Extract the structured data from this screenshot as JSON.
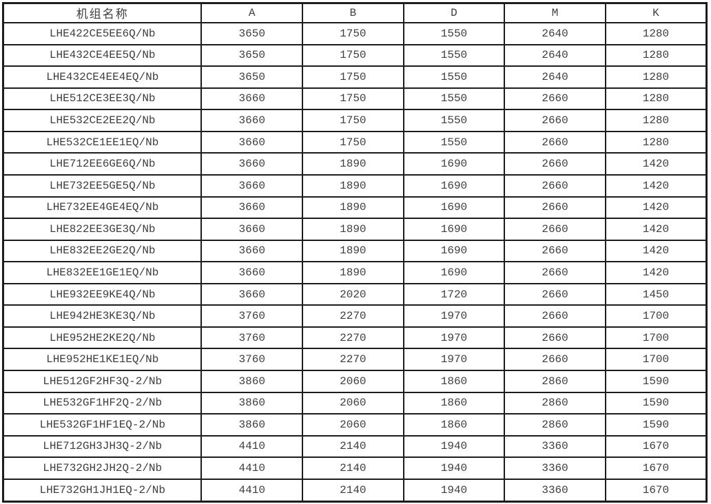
{
  "table": {
    "columns": [
      "机组名称",
      "A",
      "B",
      "D",
      "M",
      "K"
    ],
    "rows": [
      {
        "name": "LHE422CE5EE6Q/Nb",
        "values": [
          "3650",
          "1750",
          "1550",
          "2640",
          "1280"
        ]
      },
      {
        "name": "LHE432CE4EE5Q/Nb",
        "values": [
          "3650",
          "1750",
          "1550",
          "2640",
          "1280"
        ]
      },
      {
        "name": "LHE432CE4EE4EQ/Nb",
        "values": [
          "3650",
          "1750",
          "1550",
          "2640",
          "1280"
        ]
      },
      {
        "name": "LHE512CE3EE3Q/Nb",
        "values": [
          "3660",
          "1750",
          "1550",
          "2660",
          "1280"
        ]
      },
      {
        "name": "LHE532CE2EE2Q/Nb",
        "values": [
          "3660",
          "1750",
          "1550",
          "2660",
          "1280"
        ]
      },
      {
        "name": "LHE532CE1EE1EQ/Nb",
        "values": [
          "3660",
          "1750",
          "1550",
          "2660",
          "1280"
        ]
      },
      {
        "name": "LHE712EE6GE6Q/Nb",
        "values": [
          "3660",
          "1890",
          "1690",
          "2660",
          "1420"
        ]
      },
      {
        "name": "LHE732EE5GE5Q/Nb",
        "values": [
          "3660",
          "1890",
          "1690",
          "2660",
          "1420"
        ]
      },
      {
        "name": "LHE732EE4GE4EQ/Nb",
        "values": [
          "3660",
          "1890",
          "1690",
          "2660",
          "1420"
        ]
      },
      {
        "name": "LHE822EE3GE3Q/Nb",
        "values": [
          "3660",
          "1890",
          "1690",
          "2660",
          "1420"
        ]
      },
      {
        "name": "LHE832EE2GE2Q/Nb",
        "values": [
          "3660",
          "1890",
          "1690",
          "2660",
          "1420"
        ]
      },
      {
        "name": "LHE832EE1GE1EQ/Nb",
        "values": [
          "3660",
          "1890",
          "1690",
          "2660",
          "1420"
        ]
      },
      {
        "name": "LHE932EE9KE4Q/Nb",
        "values": [
          "3660",
          "2020",
          "1720",
          "2660",
          "1450"
        ]
      },
      {
        "name": "LHE942HE3KE3Q/Nb",
        "values": [
          "3760",
          "2270",
          "1970",
          "2660",
          "1700"
        ]
      },
      {
        "name": "LHE952HE2KE2Q/Nb",
        "values": [
          "3760",
          "2270",
          "1970",
          "2660",
          "1700"
        ]
      },
      {
        "name": "LHE952HE1KE1EQ/Nb",
        "values": [
          "3760",
          "2270",
          "1970",
          "2660",
          "1700"
        ]
      },
      {
        "name": "LHE512GF2HF3Q-2/Nb",
        "values": [
          "3860",
          "2060",
          "1860",
          "2860",
          "1590"
        ]
      },
      {
        "name": "LHE532GF1HF2Q-2/Nb",
        "values": [
          "3860",
          "2060",
          "1860",
          "2860",
          "1590"
        ]
      },
      {
        "name": "LHE532GF1HF1EQ-2/Nb",
        "values": [
          "3860",
          "2060",
          "1860",
          "2860",
          "1590"
        ]
      },
      {
        "name": "LHE712GH3JH3Q-2/Nb",
        "values": [
          "4410",
          "2140",
          "1940",
          "3360",
          "1670"
        ]
      },
      {
        "name": "LHE732GH2JH2Q-2/Nb",
        "values": [
          "4410",
          "2140",
          "1940",
          "3360",
          "1670"
        ]
      },
      {
        "name": "LHE732GH1JH1EQ-2/Nb",
        "values": [
          "4410",
          "2140",
          "1940",
          "3360",
          "1670"
        ]
      }
    ],
    "colors": {
      "border": "#1c1c1c",
      "text": "#3e3e3e",
      "background": "#ffffff"
    }
  }
}
